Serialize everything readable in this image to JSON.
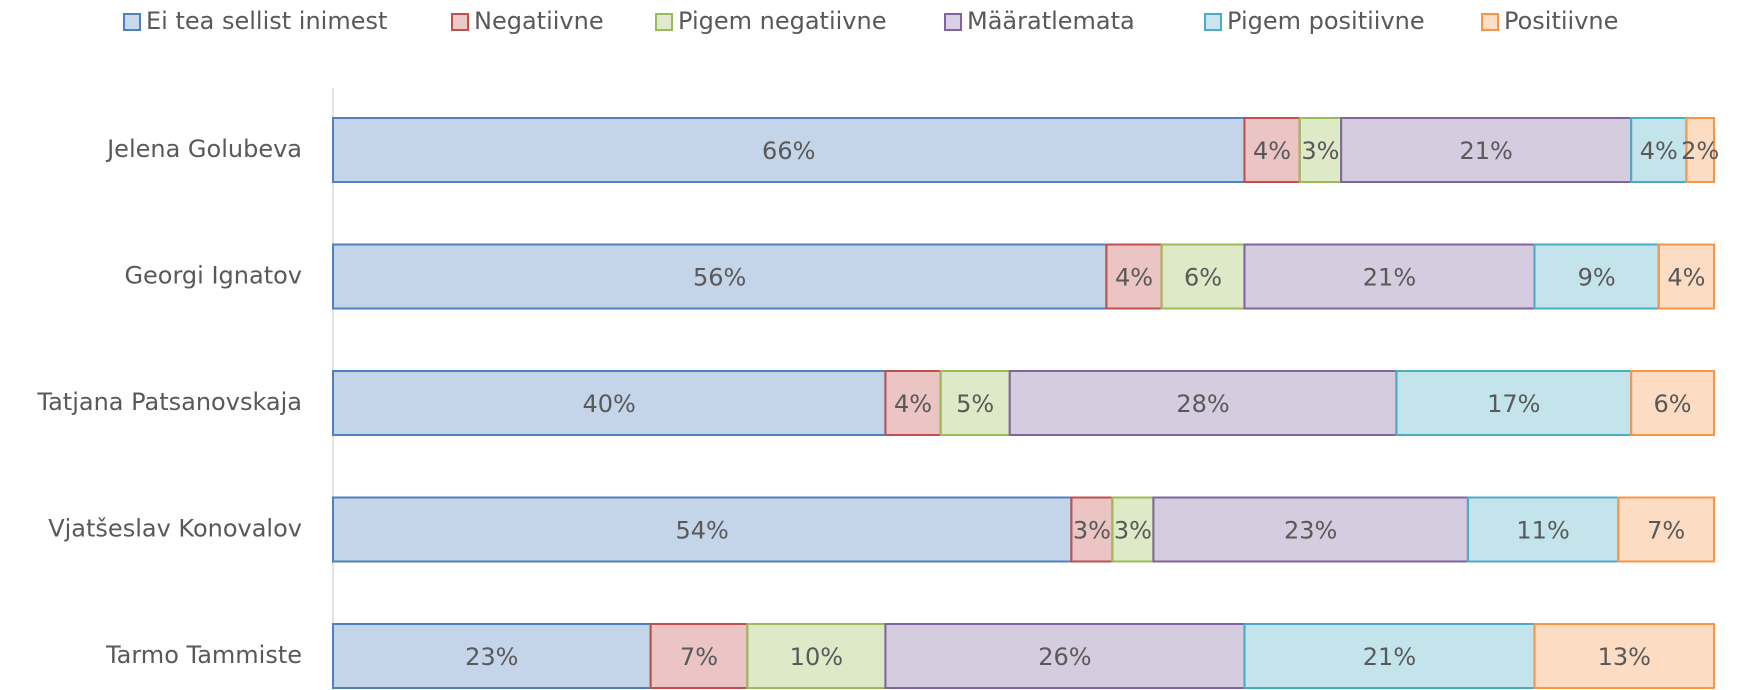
{
  "chart_data": {
    "type": "bar",
    "orientation": "horizontal",
    "stacking": "percent",
    "legend": "top",
    "categories": [
      "Jelena Golubeva",
      "Georgi Ignatov",
      "Tatjana Patsanovskaja",
      "Vjatšeslav Konovalov",
      "Tarmo Tammiste"
    ],
    "series": [
      {
        "name": "Ei tea sellist inimest",
        "color": "#4f81bd",
        "values": [
          66,
          56,
          40,
          54,
          23
        ],
        "value_labels": [
          "66%",
          "56%",
          "40%",
          "54%",
          "23%"
        ]
      },
      {
        "name": "Negatiivne",
        "color": "#c0504d",
        "values": [
          4,
          4,
          4,
          3,
          7
        ],
        "value_labels": [
          "4%",
          "4%",
          "4%",
          "3%",
          "7%"
        ]
      },
      {
        "name": "Pigem negatiivne",
        "color": "#9bbb59",
        "values": [
          3,
          6,
          5,
          3,
          10
        ],
        "value_labels": [
          "3%",
          "6%",
          "5%",
          "3%",
          "10%"
        ]
      },
      {
        "name": "Määratlemata",
        "color": "#8064a2",
        "values": [
          21,
          21,
          28,
          23,
          26
        ],
        "value_labels": [
          "21%",
          "21%",
          "28%",
          "23%",
          "26%"
        ]
      },
      {
        "name": "Pigem positiivne",
        "color": "#4bacc6",
        "values": [
          4,
          9,
          17,
          11,
          21
        ],
        "value_labels": [
          "4%",
          "9%",
          "17%",
          "11%",
          "21%"
        ]
      },
      {
        "name": "Positiivne",
        "color": "#f79646",
        "values": [
          2,
          4,
          6,
          7,
          13
        ],
        "value_labels": [
          "2%",
          "4%",
          "6%",
          "7%",
          "13%"
        ]
      }
    ]
  }
}
